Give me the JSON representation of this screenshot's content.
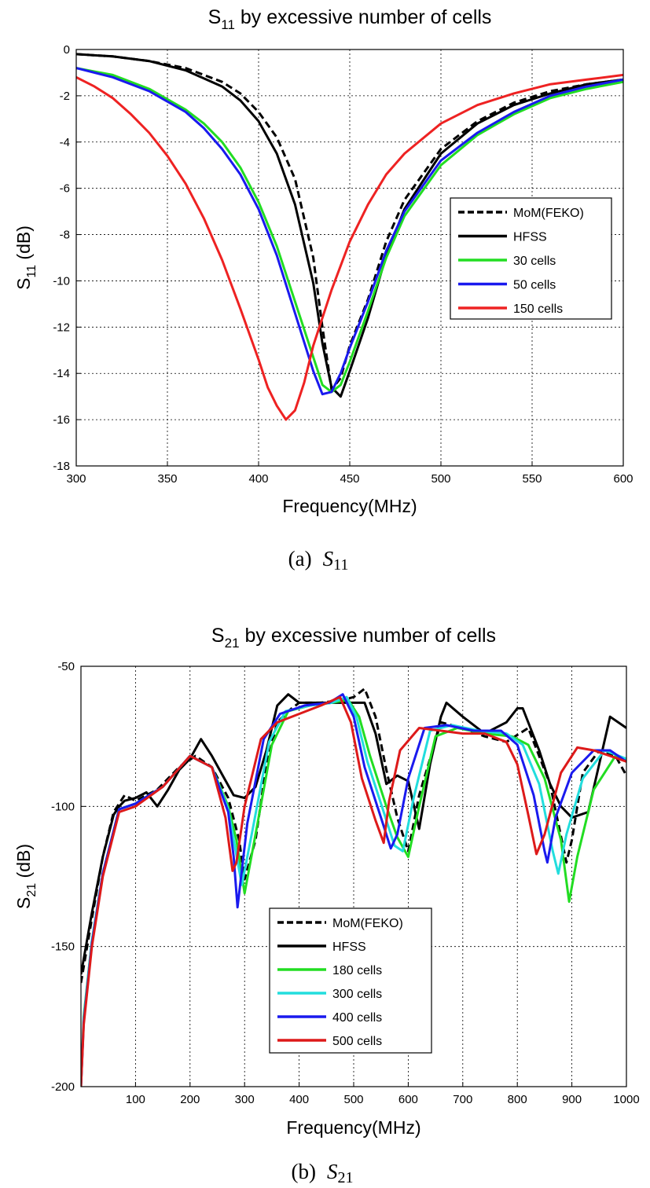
{
  "chart_data": [
    {
      "type": "line",
      "title": "S11 by excessive number of cells",
      "title_main": "S",
      "title_sub": "11",
      "title_rest": " by excessive number of cells",
      "xlabel": "Frequency(MHz)",
      "ylabel": "S11 (dB)",
      "ylabel_main": "S",
      "ylabel_sub": "11",
      "ylabel_rest": " (dB)",
      "caption": "(a)",
      "caption_main": "S",
      "caption_sub": "11",
      "xlim": [
        300,
        600
      ],
      "ylim": [
        -18,
        0
      ],
      "xticks": [
        300,
        350,
        400,
        450,
        500,
        550,
        600
      ],
      "yticks": [
        0,
        -2,
        -4,
        -6,
        -8,
        -10,
        -12,
        -14,
        -16,
        -18
      ],
      "grid": true,
      "legend_position": "right",
      "series": [
        {
          "name": "MoM(FEKO)",
          "color": "#000000",
          "style": "dashed",
          "x": [
            300,
            320,
            340,
            360,
            380,
            390,
            400,
            410,
            420,
            430,
            435,
            440,
            445,
            450,
            460,
            470,
            480,
            500,
            520,
            540,
            560,
            580,
            600
          ],
          "y": [
            -0.2,
            -0.3,
            -0.5,
            -0.8,
            -1.4,
            -1.9,
            -2.7,
            -3.8,
            -5.6,
            -9.0,
            -12.0,
            -14.7,
            -14.2,
            -12.8,
            -10.8,
            -8.3,
            -6.5,
            -4.3,
            -3.1,
            -2.3,
            -1.8,
            -1.5,
            -1.3
          ]
        },
        {
          "name": "HFSS",
          "color": "#000000",
          "style": "solid",
          "x": [
            300,
            320,
            340,
            360,
            380,
            390,
            400,
            410,
            420,
            430,
            435,
            440,
            445,
            450,
            460,
            470,
            480,
            500,
            520,
            540,
            560,
            580,
            600
          ],
          "y": [
            -0.2,
            -0.3,
            -0.5,
            -0.9,
            -1.6,
            -2.2,
            -3.1,
            -4.5,
            -6.7,
            -10.1,
            -12.7,
            -14.6,
            -15.0,
            -13.9,
            -11.6,
            -8.9,
            -6.9,
            -4.5,
            -3.2,
            -2.4,
            -1.9,
            -1.5,
            -1.3
          ]
        },
        {
          "name": "30 cells",
          "color": "#22dd22",
          "style": "solid",
          "x": [
            300,
            320,
            340,
            360,
            370,
            380,
            390,
            400,
            410,
            420,
            430,
            435,
            440,
            445,
            450,
            460,
            470,
            480,
            500,
            520,
            540,
            560,
            580,
            600
          ],
          "y": [
            -0.8,
            -1.1,
            -1.7,
            -2.6,
            -3.2,
            -4.0,
            -5.1,
            -6.6,
            -8.5,
            -10.9,
            -13.3,
            -14.5,
            -14.8,
            -14.5,
            -13.5,
            -11.3,
            -9.0,
            -7.2,
            -5.0,
            -3.7,
            -2.8,
            -2.1,
            -1.7,
            -1.4
          ]
        },
        {
          "name": "50 cells",
          "color": "#1a1aee",
          "style": "solid",
          "x": [
            300,
            320,
            340,
            360,
            370,
            380,
            390,
            400,
            410,
            420,
            430,
            435,
            440,
            445,
            450,
            460,
            470,
            480,
            500,
            520,
            540,
            560,
            580,
            600
          ],
          "y": [
            -0.8,
            -1.2,
            -1.8,
            -2.7,
            -3.4,
            -4.3,
            -5.4,
            -6.9,
            -8.9,
            -11.4,
            -13.9,
            -14.9,
            -14.8,
            -14.0,
            -12.9,
            -10.9,
            -8.7,
            -7.0,
            -4.8,
            -3.6,
            -2.7,
            -2.0,
            -1.6,
            -1.3
          ]
        },
        {
          "name": "150 cells",
          "color": "#ee2222",
          "style": "solid",
          "x": [
            300,
            310,
            320,
            330,
            340,
            350,
            360,
            370,
            380,
            390,
            400,
            405,
            410,
            415,
            420,
            425,
            430,
            440,
            450,
            460,
            470,
            480,
            500,
            520,
            540,
            560,
            580,
            600
          ],
          "y": [
            -1.2,
            -1.6,
            -2.1,
            -2.8,
            -3.6,
            -4.6,
            -5.8,
            -7.3,
            -9.1,
            -11.2,
            -13.4,
            -14.6,
            -15.4,
            -16.0,
            -15.6,
            -14.4,
            -12.8,
            -10.4,
            -8.3,
            -6.7,
            -5.4,
            -4.5,
            -3.2,
            -2.4,
            -1.9,
            -1.5,
            -1.3,
            -1.1
          ]
        }
      ]
    },
    {
      "type": "line",
      "title": "S21 by excessive number of cells",
      "title_main": "S",
      "title_sub": "21",
      "title_rest": " by excessive number of cells",
      "xlabel": "Frequency(MHz)",
      "ylabel": "S21 (dB)",
      "ylabel_main": "S",
      "ylabel_sub": "21",
      "ylabel_rest": " (dB)",
      "caption": "(b)",
      "caption_main": "S",
      "caption_sub": "21",
      "xlim": [
        0,
        1000
      ],
      "ylim": [
        -200,
        -50
      ],
      "xticks": [
        100,
        200,
        300,
        400,
        500,
        600,
        700,
        800,
        900,
        1000
      ],
      "yticks": [
        -50,
        -100,
        -150,
        -200
      ],
      "grid": true,
      "legend_position": "bottom-center",
      "series": [
        {
          "name": "MoM(FEKO)",
          "color": "#000000",
          "style": "dashed",
          "x": [
            0,
            20,
            40,
            60,
            80,
            100,
            140,
            180,
            210,
            240,
            270,
            290,
            300,
            320,
            340,
            360,
            380,
            400,
            440,
            480,
            500,
            520,
            540,
            560,
            580,
            600,
            620,
            660,
            700,
            740,
            780,
            820,
            860,
            890,
            900,
            920,
            950,
            980,
            1000
          ],
          "y": [
            -163,
            -140,
            -118,
            -102,
            -96,
            -98,
            -94,
            -86,
            -82,
            -86,
            -97,
            -112,
            -126,
            -112,
            -85,
            -70,
            -66,
            -63,
            -63,
            -62,
            -61,
            -58,
            -68,
            -87,
            -104,
            -116,
            -96,
            -70,
            -72,
            -75,
            -77,
            -72,
            -92,
            -120,
            -112,
            -88,
            -80,
            -82,
            -89
          ]
        },
        {
          "name": "HFSS",
          "color": "#000000",
          "style": "solid",
          "x": [
            0,
            20,
            40,
            60,
            70,
            80,
            100,
            120,
            140,
            160,
            180,
            200,
            220,
            240,
            260,
            280,
            300,
            320,
            340,
            360,
            380,
            400,
            420,
            440,
            460,
            480,
            500,
            520,
            540,
            560,
            580,
            600,
            620,
            640,
            660,
            670,
            700,
            740,
            780,
            800,
            810,
            840,
            860,
            880,
            900,
            930,
            970,
            1000
          ],
          "y": [
            -160,
            -138,
            -118,
            -103,
            -100,
            -98,
            -97,
            -95,
            -100,
            -94,
            -87,
            -83,
            -76,
            -82,
            -89,
            -96,
            -97,
            -93,
            -80,
            -64,
            -60,
            -63,
            -63,
            -63,
            -63,
            -63,
            -63,
            -63,
            -74,
            -92,
            -89,
            -91,
            -108,
            -85,
            -68,
            -63,
            -68,
            -74,
            -70,
            -65,
            -65,
            -80,
            -92,
            -100,
            -104,
            -102,
            -68,
            -72
          ]
        },
        {
          "name": "180 cells",
          "color": "#22dd22",
          "style": "solid",
          "x": [
            0,
            5,
            20,
            40,
            70,
            100,
            150,
            200,
            240,
            270,
            285,
            300,
            320,
            350,
            380,
            420,
            460,
            490,
            510,
            530,
            560,
            580,
            600,
            620,
            650,
            690,
            740,
            790,
            820,
            850,
            880,
            895,
            910,
            940,
            980,
            1000
          ],
          "y": [
            -200,
            -175,
            -148,
            -124,
            -101,
            -99,
            -93,
            -82,
            -86,
            -100,
            -112,
            -131,
            -110,
            -78,
            -66,
            -64,
            -63,
            -62,
            -68,
            -82,
            -100,
            -111,
            -118,
            -100,
            -75,
            -72,
            -74,
            -75,
            -78,
            -90,
            -112,
            -134,
            -118,
            -94,
            -82,
            -84
          ]
        },
        {
          "name": "300 cells",
          "color": "#22dddd",
          "style": "solid",
          "x": [
            0,
            5,
            20,
            40,
            70,
            100,
            150,
            200,
            240,
            270,
            282,
            295,
            315,
            345,
            375,
            420,
            460,
            487,
            505,
            525,
            555,
            575,
            590,
            610,
            640,
            680,
            730,
            780,
            810,
            840,
            865,
            875,
            890,
            920,
            960,
            1000
          ],
          "y": [
            -200,
            -176,
            -148,
            -124,
            -101,
            -99,
            -93,
            -82,
            -86,
            -101,
            -114,
            -128,
            -108,
            -77,
            -66,
            -64,
            -63,
            -61,
            -68,
            -84,
            -102,
            -114,
            -116,
            -97,
            -73,
            -71,
            -73,
            -74,
            -78,
            -92,
            -116,
            -124,
            -110,
            -90,
            -80,
            -83
          ]
        },
        {
          "name": "400 cells",
          "color": "#1a1aee",
          "style": "solid",
          "x": [
            0,
            5,
            20,
            40,
            70,
            100,
            150,
            200,
            240,
            270,
            280,
            287,
            305,
            335,
            365,
            410,
            455,
            480,
            500,
            520,
            550,
            568,
            580,
            600,
            630,
            670,
            720,
            770,
            800,
            830,
            850,
            855,
            870,
            900,
            940,
            970,
            1000
          ],
          "y": [
            -200,
            -177,
            -149,
            -124,
            -101,
            -99,
            -93,
            -82,
            -86,
            -102,
            -118,
            -136,
            -106,
            -76,
            -67,
            -64,
            -63,
            -60,
            -68,
            -86,
            -104,
            -115,
            -110,
            -90,
            -72,
            -71,
            -73,
            -73,
            -78,
            -96,
            -116,
            -120,
            -104,
            -88,
            -80,
            -80,
            -84
          ]
        },
        {
          "name": "500 cells",
          "color": "#dd1a1a",
          "style": "solid",
          "x": [
            0,
            5,
            20,
            40,
            70,
            100,
            150,
            200,
            240,
            265,
            278,
            285,
            300,
            330,
            360,
            400,
            440,
            475,
            495,
            515,
            540,
            555,
            565,
            585,
            620,
            660,
            700,
            740,
            780,
            800,
            820,
            835,
            850,
            880,
            910,
            940,
            970,
            1000
          ],
          "y": [
            -200,
            -178,
            -150,
            -125,
            -102,
            -100,
            -93,
            -82,
            -86,
            -104,
            -123,
            -120,
            -100,
            -76,
            -70,
            -67,
            -64,
            -61,
            -70,
            -90,
            -105,
            -113,
            -98,
            -80,
            -72,
            -73,
            -74,
            -74,
            -77,
            -85,
            -103,
            -117,
            -110,
            -88,
            -79,
            -80,
            -82,
            -84
          ]
        }
      ]
    }
  ]
}
